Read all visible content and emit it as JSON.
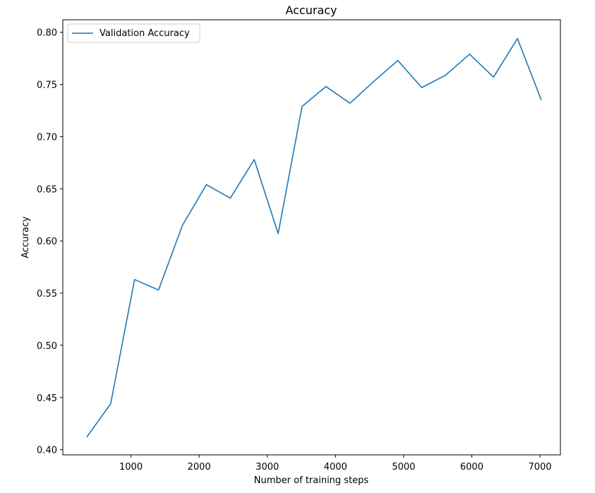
{
  "chart_data": {
    "type": "line",
    "title": "Accuracy",
    "xlabel": "Number of training steps",
    "ylabel": "Accuracy",
    "xlim": [
      0,
      7300
    ],
    "ylim": [
      0.395,
      0.812
    ],
    "x_ticks": [
      1000,
      2000,
      3000,
      4000,
      5000,
      6000,
      7000
    ],
    "x_tick_labels": [
      "1000",
      "2000",
      "3000",
      "4000",
      "5000",
      "6000",
      "7000"
    ],
    "y_ticks": [
      0.4,
      0.45,
      0.5,
      0.55,
      0.6,
      0.65,
      0.7,
      0.75,
      0.8
    ],
    "y_tick_labels": [
      "0.40",
      "0.45",
      "0.50",
      "0.55",
      "0.60",
      "0.65",
      "0.70",
      "0.75",
      "0.80"
    ],
    "grid": false,
    "legend": "top-left",
    "series": [
      {
        "name": "Validation Accuracy",
        "color": "#1f77b4",
        "x": [
          351,
          702,
          1053,
          1404,
          1755,
          2106,
          2457,
          2808,
          3159,
          3510,
          3861,
          4212,
          4563,
          4914,
          5265,
          5616,
          5967,
          6318,
          6669,
          7020
        ],
        "y": [
          0.412,
          0.444,
          0.563,
          0.553,
          0.615,
          0.654,
          0.641,
          0.678,
          0.607,
          0.729,
          0.748,
          0.732,
          0.753,
          0.773,
          0.747,
          0.759,
          0.779,
          0.757,
          0.794,
          0.735
        ]
      }
    ]
  }
}
